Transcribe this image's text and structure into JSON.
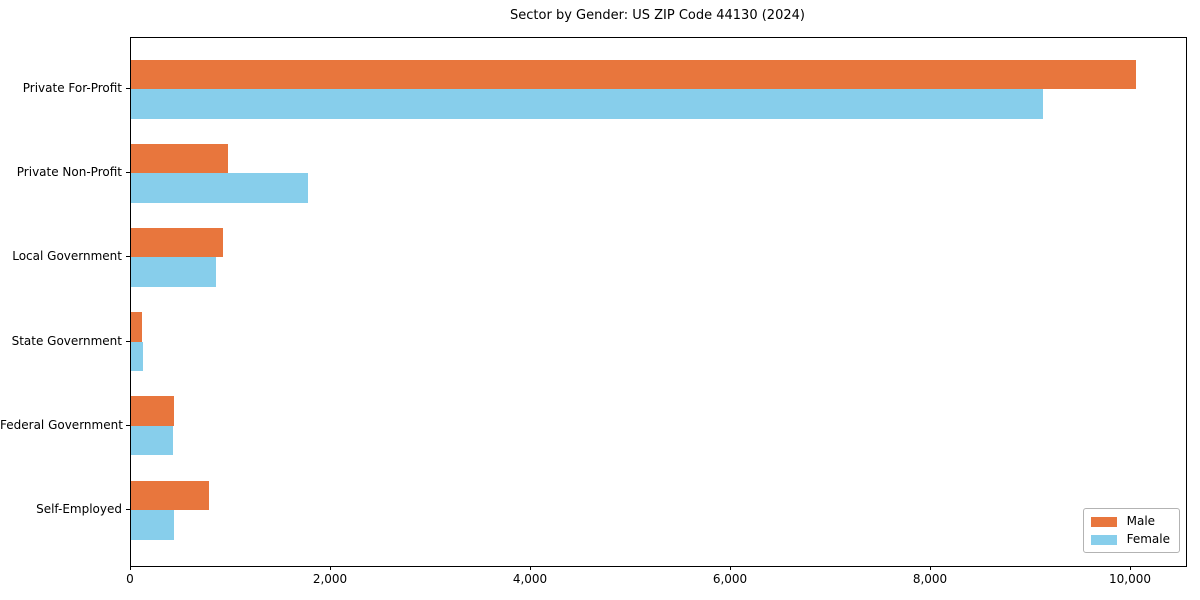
{
  "title": "Sector by Gender: US ZIP Code 44130 (2024)",
  "colors": {
    "male": "#e8763d",
    "female": "#87ceeb",
    "axis": "#000000",
    "legend_border": "#b3b3b3",
    "background": "#ffffff"
  },
  "chart_data": {
    "type": "bar",
    "orientation": "horizontal",
    "title": "Sector by Gender: US ZIP Code 44130 (2024)",
    "categories": [
      "Private For-Profit",
      "Private Non-Profit",
      "Local Government",
      "State Government",
      "Federal Government",
      "Self-Employed"
    ],
    "series": [
      {
        "name": "Male",
        "color": "#e8763d",
        "values": [
          10050,
          970,
          920,
          110,
          425,
          775
        ]
      },
      {
        "name": "Female",
        "color": "#87ceeb",
        "values": [
          9120,
          1770,
          850,
          120,
          415,
          425
        ]
      }
    ],
    "xlabel": "",
    "ylabel": "",
    "xlim": [
      0,
      10550
    ],
    "x_ticks": [
      {
        "value": 0,
        "label": "0"
      },
      {
        "value": 2000,
        "label": "2,000"
      },
      {
        "value": 4000,
        "label": "4,000"
      },
      {
        "value": 6000,
        "label": "6,000"
      },
      {
        "value": 8000,
        "label": "8,000"
      },
      {
        "value": 10000,
        "label": "10,000"
      }
    ],
    "grid": false,
    "legend": {
      "position": "lower right",
      "entries": [
        "Male",
        "Female"
      ]
    }
  }
}
